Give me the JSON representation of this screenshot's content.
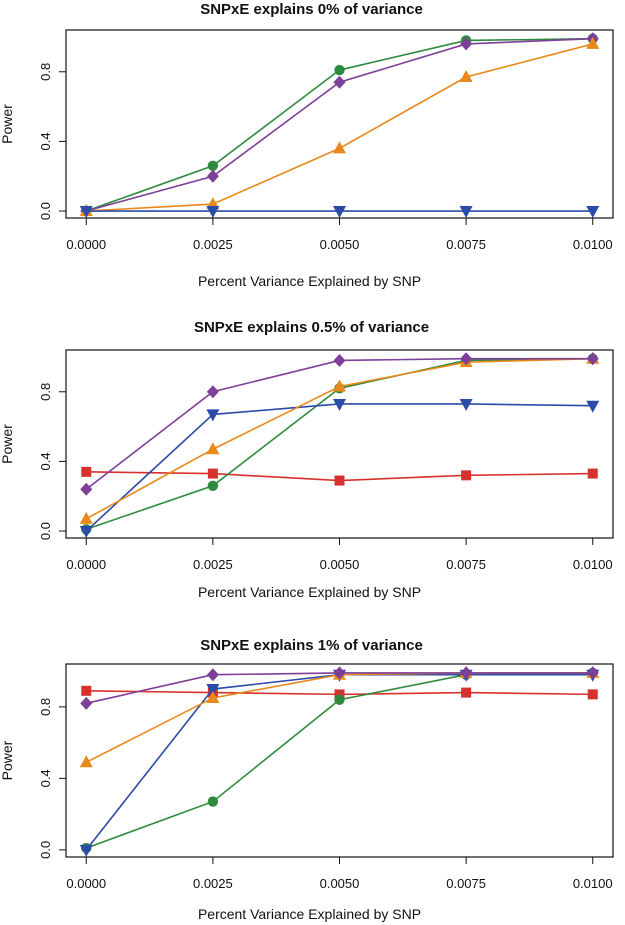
{
  "chart_data": [
    {
      "type": "line",
      "title": "SNPxE explains 0% of variance",
      "xlabel": "Percent Variance Explained by SNP",
      "ylabel": "Power",
      "x": [
        0.0,
        0.0025,
        0.005,
        0.0075,
        0.01
      ],
      "x_tick_labels": [
        "0.0000",
        "0.0025",
        "0.0050",
        "0.0075",
        "0.0100"
      ],
      "y_ticks": [
        0.0,
        0.4,
        0.8
      ],
      "y_tick_labels": [
        "0.0",
        "0.4",
        "0.8"
      ],
      "xlim": [
        -0.0004,
        0.0104
      ],
      "ylim": [
        -0.04,
        1.04
      ],
      "grid": false,
      "series": [
        {
          "color": "#2e8b3e",
          "marker": "circle",
          "values": [
            0.0,
            0.26,
            0.81,
            0.98,
            0.99
          ]
        },
        {
          "color": "#7d3f98",
          "marker": "diamond",
          "values": [
            0.0,
            0.2,
            0.74,
            0.96,
            0.99
          ]
        },
        {
          "color": "#e8891a",
          "marker": "triangle-up",
          "values": [
            0.0,
            0.04,
            0.36,
            0.77,
            0.96
          ]
        },
        {
          "color": "#2c4ba8",
          "marker": "triangle-down",
          "values": [
            0.0,
            0.0,
            0.0,
            0.0,
            0.0
          ]
        }
      ]
    },
    {
      "type": "line",
      "title": "SNPxE explains 0.5% of variance",
      "xlabel": "Percent Variance Explained by SNP",
      "ylabel": "Power",
      "x": [
        0.0,
        0.0025,
        0.005,
        0.0075,
        0.01
      ],
      "x_tick_labels": [
        "0.0000",
        "0.0025",
        "0.0050",
        "0.0075",
        "0.0100"
      ],
      "y_ticks": [
        0.0,
        0.4,
        0.8
      ],
      "y_tick_labels": [
        "0.0",
        "0.4",
        "0.8"
      ],
      "xlim": [
        -0.0004,
        0.0104
      ],
      "ylim": [
        -0.04,
        1.04
      ],
      "grid": false,
      "series": [
        {
          "color": "#d7312e",
          "marker": "square",
          "values": [
            0.34,
            0.33,
            0.29,
            0.32,
            0.33
          ]
        },
        {
          "color": "#2e8b3e",
          "marker": "circle",
          "values": [
            0.01,
            0.26,
            0.82,
            0.98,
            0.99
          ]
        },
        {
          "color": "#2c4ba8",
          "marker": "triangle-down",
          "values": [
            0.0,
            0.67,
            0.73,
            0.73,
            0.72
          ]
        },
        {
          "color": "#e8891a",
          "marker": "triangle-up",
          "values": [
            0.07,
            0.47,
            0.83,
            0.97,
            0.99
          ]
        },
        {
          "color": "#7d3f98",
          "marker": "diamond",
          "values": [
            0.24,
            0.8,
            0.98,
            0.99,
            0.99
          ]
        }
      ]
    },
    {
      "type": "line",
      "title": "SNPxE explains 1% of variance",
      "xlabel": "Percent Variance Explained by SNP",
      "ylabel": "Power",
      "x": [
        0.0,
        0.0025,
        0.005,
        0.0075,
        0.01
      ],
      "x_tick_labels": [
        "0.0000",
        "0.0025",
        "0.0050",
        "0.0075",
        "0.0100"
      ],
      "y_ticks": [
        0.0,
        0.4,
        0.8
      ],
      "y_tick_labels": [
        "0.0",
        "0.4",
        "0.8"
      ],
      "xlim": [
        -0.0004,
        0.0104
      ],
      "ylim": [
        -0.04,
        1.04
      ],
      "grid": false,
      "series": [
        {
          "color": "#d7312e",
          "marker": "square",
          "values": [
            0.89,
            0.88,
            0.87,
            0.88,
            0.87
          ]
        },
        {
          "color": "#2e8b3e",
          "marker": "circle",
          "values": [
            0.01,
            0.27,
            0.84,
            0.98,
            0.99
          ]
        },
        {
          "color": "#2c4ba8",
          "marker": "triangle-down",
          "values": [
            0.0,
            0.9,
            0.98,
            0.98,
            0.98
          ]
        },
        {
          "color": "#e8891a",
          "marker": "triangle-up",
          "values": [
            0.49,
            0.85,
            0.98,
            0.99,
            0.99
          ]
        },
        {
          "color": "#7d3f98",
          "marker": "diamond",
          "values": [
            0.82,
            0.98,
            0.99,
            0.99,
            0.99
          ]
        }
      ]
    }
  ]
}
